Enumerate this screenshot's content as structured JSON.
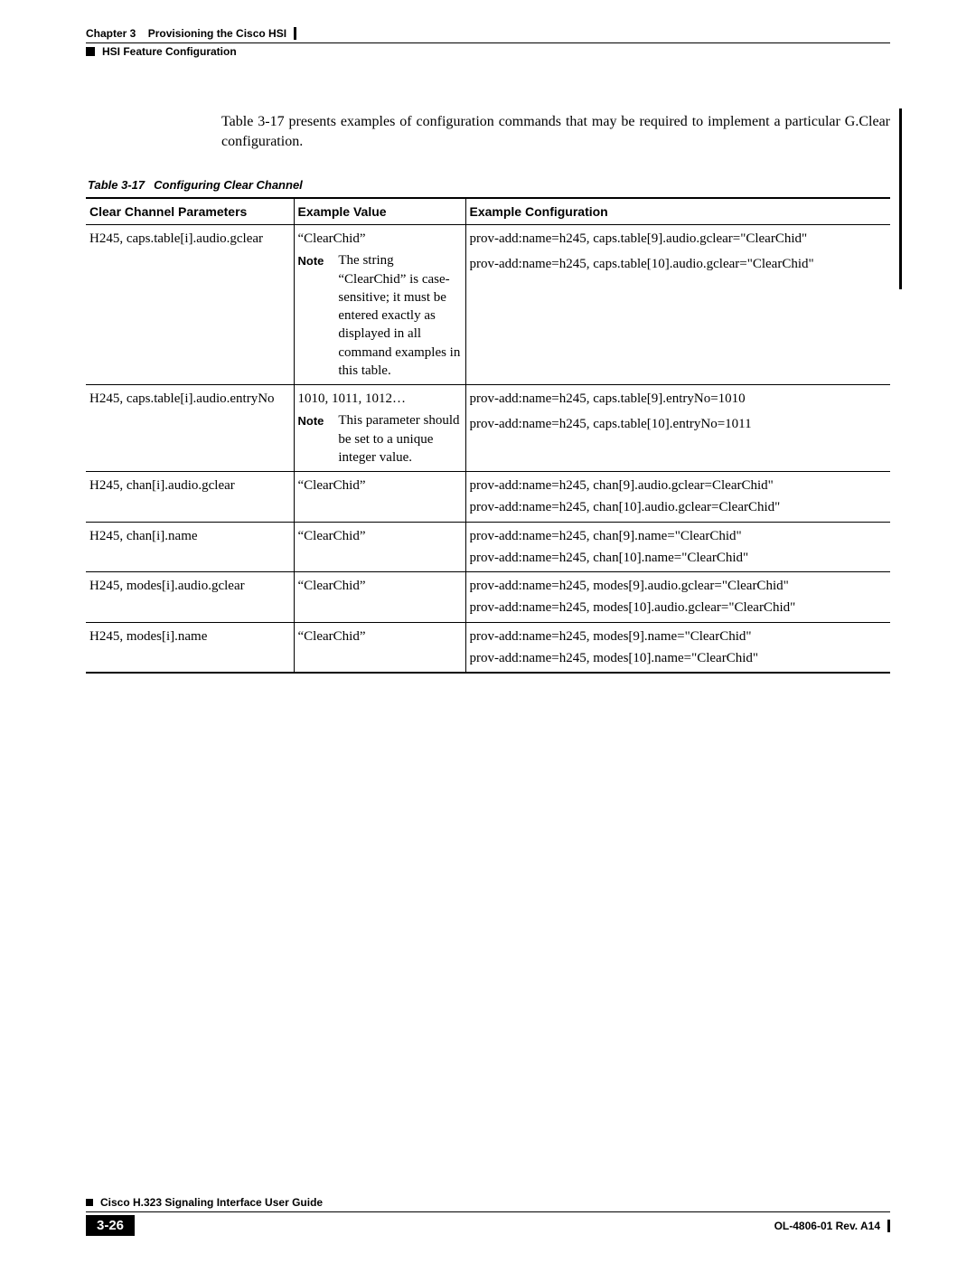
{
  "header": {
    "section": "HSI Feature Configuration",
    "chapter_label": "Chapter 3",
    "chapter_title": "Provisioning the Cisco HSI"
  },
  "intro": "Table 3-17 presents examples of configuration commands that may be required to implement a particular G.Clear configuration.",
  "table": {
    "number": "Table 3-17",
    "title": "Configuring Clear Channel",
    "columns": [
      "Clear Channel Parameters",
      "Example Value",
      "Example Configuration"
    ],
    "rows": [
      {
        "param": "H245, caps.table[i].audio.gclear",
        "example_value": "“ClearChid”",
        "note": "The string “ClearChid” is case-sensitive; it must be entered exactly as displayed in all command examples in this table.",
        "config": [
          "prov-add:name=h245, caps.table[9].audio.gclear=\"ClearChid\"",
          "prov-add:name=h245, caps.table[10].audio.gclear=\"ClearChid\""
        ]
      },
      {
        "param": "H245, caps.table[i].audio.entryNo",
        "example_value": "1010, 1011, 1012…",
        "note": "This parameter should be set to a unique integer value.",
        "config": [
          "prov-add:name=h245, caps.table[9].entryNo=1010",
          "prov-add:name=h245, caps.table[10].entryNo=1011"
        ]
      },
      {
        "param": "H245, chan[i].audio.gclear",
        "example_value": "“ClearChid”",
        "note": null,
        "config": [
          "prov-add:name=h245, chan[9].audio.gclear=ClearChid\"",
          "prov-add:name=h245, chan[10].audio.gclear=ClearChid\""
        ]
      },
      {
        "param": "H245, chan[i].name",
        "example_value": "“ClearChid”",
        "note": null,
        "config": [
          "prov-add:name=h245, chan[9].name=\"ClearChid\"",
          "prov-add:name=h245, chan[10].name=\"ClearChid\""
        ]
      },
      {
        "param": "H245, modes[i].audio.gclear",
        "example_value": "“ClearChid”",
        "note": null,
        "config": [
          "prov-add:name=h245, modes[9].audio.gclear=\"ClearChid\"",
          "prov-add:name=h245, modes[10].audio.gclear=\"ClearChid\""
        ]
      },
      {
        "param": "H245, modes[i].name",
        "example_value": "“ClearChid”",
        "note": null,
        "config": [
          "prov-add:name=h245, modes[9].name=\"ClearChid\"",
          "prov-add:name=h245, modes[10].name=\"ClearChid\""
        ]
      }
    ]
  },
  "labels": {
    "note": "Note"
  },
  "footer": {
    "guide": "Cisco H.323 Signaling Interface User Guide",
    "page": "3-26",
    "doc_id": "OL-4806-01 Rev. A14"
  }
}
